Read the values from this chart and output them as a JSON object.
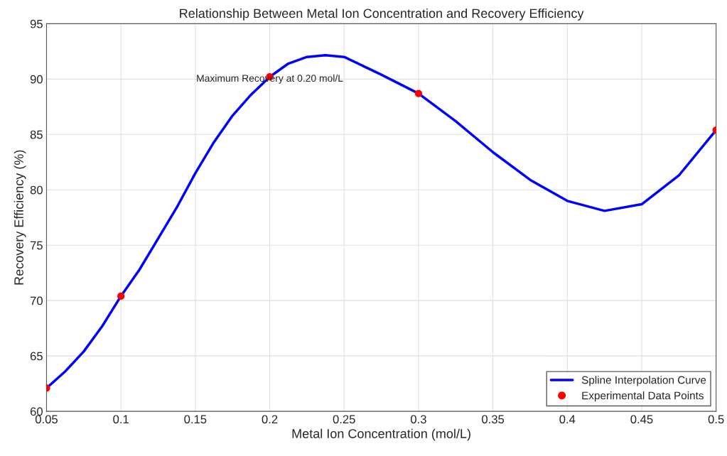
{
  "chart_data": {
    "type": "line",
    "title": "Relationship Between Metal Ion Concentration and Recovery Efficiency",
    "xlabel": "Metal Ion Concentration (mol/L)",
    "ylabel": "Recovery Efficiency (%)",
    "series": [
      {
        "name": "Spline Interpolation Curve",
        "color": "#0000ff",
        "marker": "none",
        "line_style": "solid",
        "x": [
          0.05,
          0.0625,
          0.075,
          0.0875,
          0.1,
          0.1125,
          0.125,
          0.1375,
          0.15,
          0.1625,
          0.175,
          0.1875,
          0.2,
          0.2125,
          0.225,
          0.2375,
          0.25,
          0.275,
          0.3,
          0.325,
          0.35,
          0.375,
          0.4,
          0.425,
          0.45,
          0.475,
          0.5
        ],
        "values": [
          62.1,
          63.6,
          65.4,
          67.7,
          70.4,
          72.8,
          75.6,
          78.4,
          81.5,
          84.3,
          86.7,
          88.6,
          90.2,
          91.4,
          92.0,
          92.15,
          92.0,
          90.4,
          88.7,
          86.2,
          83.4,
          80.9,
          79.0,
          78.1,
          78.7,
          81.3,
          85.4
        ]
      },
      {
        "name": "Experimental Data Points",
        "type": "scatter",
        "color": "#ff0000",
        "marker": "circle",
        "x": [
          0.05,
          0.1,
          0.2,
          0.3,
          0.5
        ],
        "values": [
          62.1,
          70.4,
          90.2,
          88.7,
          85.4
        ]
      }
    ],
    "annotations": [
      {
        "text": "Maximum Recovery at 0.20 mol/L",
        "x": 0.2,
        "y": 90
      }
    ],
    "xlim": [
      0.05,
      0.5
    ],
    "xticks": [
      {
        "value": 0.05,
        "label": "0.05"
      },
      {
        "value": 0.1,
        "label": "0.1"
      },
      {
        "value": 0.15,
        "label": "0.15"
      },
      {
        "value": 0.2,
        "label": "0.2"
      },
      {
        "value": 0.25,
        "label": "0.25"
      },
      {
        "value": 0.3,
        "label": "0.3"
      },
      {
        "value": 0.35,
        "label": "0.35"
      },
      {
        "value": 0.4,
        "label": "0.4"
      },
      {
        "value": 0.45,
        "label": "0.45"
      },
      {
        "value": 0.5,
        "label": "0.5"
      }
    ],
    "ylim": [
      60,
      95
    ],
    "yticks": [
      60,
      65,
      70,
      75,
      80,
      85,
      90,
      95
    ],
    "grid": true,
    "legend": "bottom right"
  }
}
